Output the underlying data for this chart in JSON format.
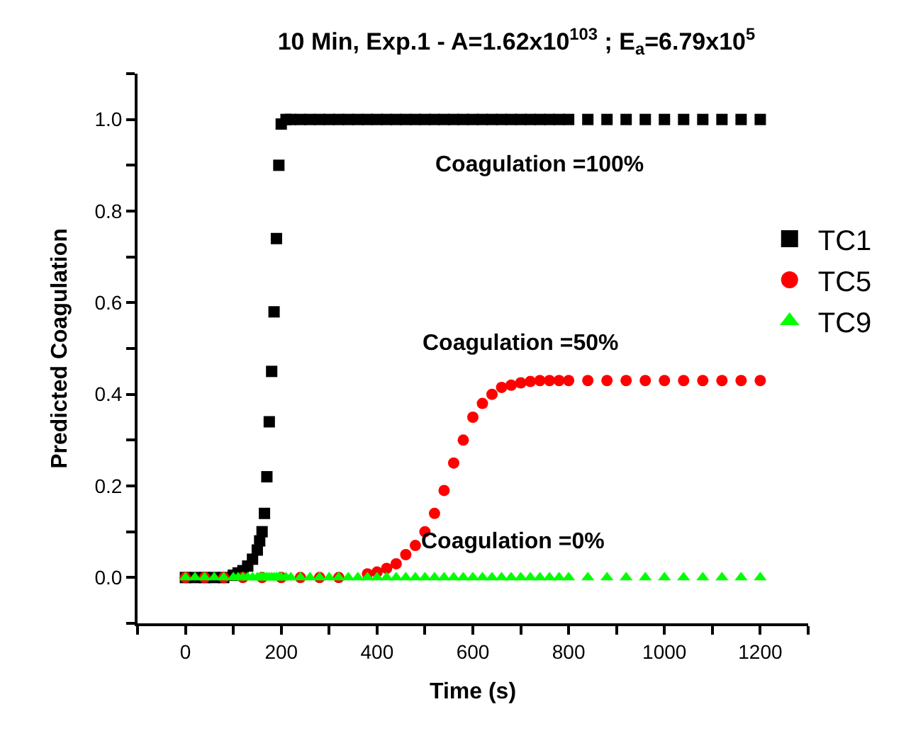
{
  "chart_data": {
    "type": "scatter",
    "title": "10 Min, Exp.1 - A=1.62x10$^{103}$ ; E$_{a}$=6.79x10$^{5}$",
    "xlabel": "Time (s)",
    "ylabel": "Predicted Coagulation",
    "x": [
      0,
      20,
      40,
      60,
      80,
      100,
      110,
      120,
      130,
      140,
      150,
      155,
      160,
      165,
      170,
      175,
      180,
      185,
      190,
      195,
      200,
      210,
      220,
      240,
      260,
      280,
      300,
      320,
      340,
      360,
      380,
      400,
      420,
      440,
      460,
      480,
      500,
      520,
      540,
      560,
      580,
      600,
      620,
      640,
      660,
      680,
      700,
      720,
      740,
      760,
      780,
      800,
      840,
      880,
      920,
      960,
      1000,
      1040,
      1080,
      1120,
      1160,
      1200
    ],
    "series": [
      {
        "name": "TC1",
        "color": "#000000",
        "marker": "square",
        "values": [
          0,
          0,
          0,
          0,
          0,
          0.005,
          0.01,
          0.015,
          0.025,
          0.04,
          0.06,
          0.08,
          0.1,
          0.14,
          0.22,
          0.34,
          0.45,
          0.58,
          0.74,
          0.9,
          0.99,
          1,
          1,
          1,
          1,
          1,
          1,
          1,
          1,
          1,
          1,
          1,
          1,
          1,
          1,
          1,
          1,
          1,
          1,
          1,
          1,
          1,
          1,
          1,
          1,
          1,
          1,
          1,
          1,
          1,
          1,
          1,
          1,
          1,
          1,
          1,
          1,
          1,
          1,
          1,
          1,
          1
        ]
      },
      {
        "name": "TC5",
        "color": "#ff0000",
        "marker": "circle",
        "x": [
          0,
          40,
          80,
          120,
          160,
          200,
          240,
          280,
          320,
          360,
          380,
          400,
          420,
          440,
          460,
          480,
          500,
          520,
          540,
          560,
          580,
          600,
          620,
          640,
          660,
          680,
          700,
          720,
          740,
          760,
          780,
          800,
          840,
          880,
          920,
          960,
          1000,
          1040,
          1080,
          1120,
          1160,
          1200
        ],
        "values": [
          0,
          0,
          0,
          0,
          0,
          0,
          0,
          0,
          0,
          null,
          0.008,
          0.012,
          0.02,
          0.03,
          0.05,
          0.07,
          0.1,
          0.14,
          0.19,
          0.25,
          0.3,
          0.35,
          0.38,
          0.4,
          0.415,
          0.42,
          0.425,
          0.428,
          0.43,
          0.43,
          0.43,
          0.43,
          0.43,
          0.43,
          0.43,
          0.43,
          0.43,
          0.43,
          0.43,
          0.43,
          0.43,
          0.43
        ]
      },
      {
        "name": "TC9",
        "color": "#00ff00",
        "marker": "triangle",
        "values": [
          0,
          0,
          0,
          0,
          0,
          0,
          0,
          0,
          0,
          0,
          0,
          0,
          0,
          0,
          0,
          0,
          0,
          0,
          0,
          0,
          0,
          0,
          0,
          0,
          0,
          0,
          0,
          0,
          0,
          0,
          0,
          0,
          0,
          0,
          0,
          0,
          0,
          0,
          0,
          0,
          0,
          0,
          0,
          0,
          0,
          0,
          0,
          0,
          0,
          0,
          0,
          0,
          0,
          0,
          0,
          0,
          0,
          0,
          0,
          0,
          0,
          0
        ]
      }
    ],
    "annotations": [
      "Coagulation =100%",
      "Coagulation =50%",
      "Coagulation =0%"
    ],
    "xlim": [
      -100,
      1300
    ],
    "xticks": [
      {
        "value": -100,
        "label": null
      },
      0,
      {
        "value": 100,
        "label": null
      },
      200,
      {
        "value": 300,
        "label": null
      },
      400,
      {
        "value": 500,
        "label": null
      },
      600,
      {
        "value": 700,
        "label": null
      },
      800,
      {
        "value": 900,
        "label": null
      },
      1000,
      {
        "value": 1100,
        "label": null
      },
      1200,
      {
        "value": 1300,
        "label": null
      }
    ],
    "ylim": [
      -0.1,
      1.1
    ],
    "yticks": [
      {
        "value": -0.1,
        "label": null
      },
      {
        "value": 0,
        "label": "0.0"
      },
      {
        "value": 0.1,
        "label": null
      },
      {
        "value": 0.2,
        "label": "0.2"
      },
      {
        "value": 0.3,
        "label": null
      },
      {
        "value": 0.4,
        "label": "0.4"
      },
      {
        "value": 0.5,
        "label": null
      },
      {
        "value": 0.6,
        "label": "0.6"
      },
      {
        "value": 0.7,
        "label": null
      },
      {
        "value": 0.8,
        "label": "0.8"
      },
      {
        "value": 0.9,
        "label": null
      },
      {
        "value": 1.0,
        "label": "1.0"
      },
      {
        "value": 1.1,
        "label": null
      }
    ],
    "legend": "top right"
  }
}
